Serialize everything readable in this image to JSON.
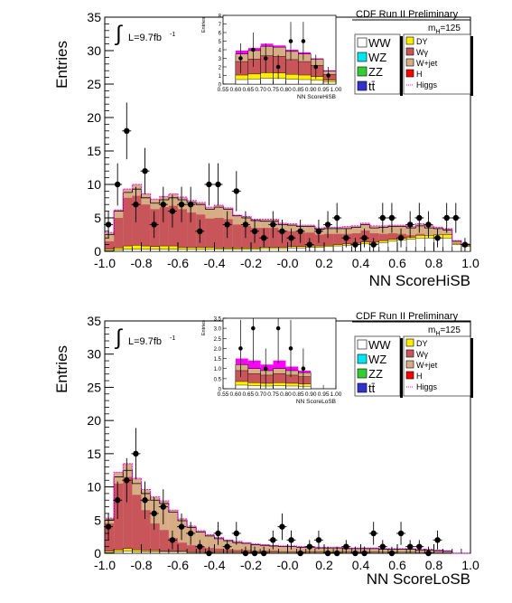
{
  "colors": {
    "WW": "#ffffff",
    "WZ": "#00e5ee",
    "ZZ": "#33cc33",
    "ttbar": "#3333cc",
    "DY": "#ffee00",
    "Wgamma": "#c8555a",
    "Wjet": "#d6ad85",
    "H": "#ff0000",
    "Higgs": "#ff00ff",
    "data": "#000000"
  },
  "legend": {
    "left": [
      {
        "key": "WW",
        "label": "WW"
      },
      {
        "key": "WZ",
        "label": "WZ"
      },
      {
        "key": "ZZ",
        "label": "ZZ"
      },
      {
        "key": "ttbar",
        "label": "tt̄"
      }
    ],
    "right": [
      {
        "key": "DY",
        "label": "DY"
      },
      {
        "key": "Wgamma",
        "label": "Wγ"
      },
      {
        "key": "Wjet",
        "label": "W+jet"
      },
      {
        "key": "H",
        "label": "H"
      },
      {
        "key": "Higgs",
        "label": "Higgs"
      }
    ],
    "mass_label": "m",
    "mass_sub": "H",
    "mass_value": "=125"
  },
  "chart_data": [
    {
      "type": "bar",
      "title": "CDF Run II Preliminary",
      "ylabel": "Entries",
      "xlabel": "NN ScoreHiSB",
      "lumi_text": "L=9.7fb",
      "lumi_sup": "-1",
      "xlim": [
        -1.0,
        1.0
      ],
      "ylim": [
        0,
        35
      ],
      "xticks": [
        "-1.0",
        "-0.8",
        "-0.6",
        "-0.4",
        "-0.2",
        "-0.0",
        "0.2",
        "0.4",
        "0.6",
        "0.8",
        "1.0"
      ],
      "yticks": [
        "0",
        "5",
        "10",
        "15",
        "20",
        "25",
        "30",
        "35"
      ],
      "bin_edges_x": [
        -1.0,
        0.99
      ],
      "bins": 40,
      "stack_total": [
        2.5,
        6,
        8.8,
        9.3,
        8,
        7.2,
        7.7,
        8,
        7.7,
        7.3,
        7,
        6.3,
        6.6,
        6.3,
        5.3,
        5,
        4.6,
        4.5,
        4.5,
        4,
        3.9,
        3.7,
        3.7,
        3.3,
        3.4,
        3.4,
        3.4,
        3.6,
        4,
        3.5,
        3.6,
        3.7,
        3.7,
        3.5,
        3.8,
        3.5,
        3.4,
        3.2,
        1.5,
        1
      ],
      "wjet_top": [
        2.8,
        6.2,
        9.3,
        10,
        8.6,
        7.8,
        8.2,
        8.6,
        8.1,
        7.6,
        7.3,
        6.6,
        6.9,
        6.5,
        5.4,
        5.2,
        4.8,
        4.8,
        4.8,
        4.2,
        4.1,
        3.9,
        3.9,
        3.5,
        3.6,
        3.6,
        3.7,
        3.8,
        4.2,
        3.8,
        3.8,
        3.9,
        3.9,
        3.7,
        4.1,
        3.8,
        3.6,
        3.4,
        1.6,
        1.1
      ],
      "wgamma_top": [
        1.5,
        5,
        8,
        8.3,
        7,
        6.3,
        6.6,
        6.8,
        6.3,
        5.8,
        5.5,
        4.9,
        5,
        4.8,
        4,
        3.8,
        3.5,
        3.5,
        3.5,
        3.1,
        3,
        2.8,
        2.8,
        2.5,
        2.6,
        2.6,
        2.6,
        2.7,
        3.1,
        2.7,
        2.6,
        2.7,
        2.6,
        2.4,
        2.6,
        2.4,
        2.2,
        1.9,
        0.8,
        0.5
      ],
      "dy_top": [
        0.3,
        0.5,
        0.8,
        0.9,
        0.8,
        0.7,
        0.8,
        0.8,
        0.6,
        0.6,
        0.6,
        0.6,
        0.5,
        0.5,
        0.5,
        0.5,
        0.5,
        0.6,
        0.6,
        0.6,
        0.7,
        0.7,
        0.8,
        0.8,
        0.9,
        1.0,
        1.1,
        1.2,
        1.4,
        1.4,
        1.6,
        1.8,
        2.0,
        2.1,
        2.4,
        2.4,
        2.5,
        2.5,
        1.2,
        0.9
      ],
      "ww_top": [
        0.1,
        0.2,
        0.3,
        0.3,
        0.3,
        0.3,
        0.3,
        0.3,
        0.3,
        0.3,
        0.3,
        0.3,
        0.3,
        0.3,
        0.3,
        0.3,
        0.3,
        0.4,
        0.4,
        0.4,
        0.5,
        0.5,
        0.6,
        0.6,
        0.7,
        0.8,
        0.9,
        1.0,
        1.1,
        1.2,
        1.3,
        1.5,
        1.7,
        1.8,
        2.0,
        2.0,
        2.0,
        2.0,
        1.0,
        0.7
      ],
      "data_x": [
        -0.98,
        -0.93,
        -0.88,
        -0.83,
        -0.78,
        -0.73,
        -0.68,
        -0.63,
        -0.58,
        -0.53,
        -0.48,
        -0.43,
        -0.38,
        -0.33,
        -0.28,
        -0.23,
        -0.18,
        -0.13,
        -0.08,
        -0.03,
        0.02,
        0.07,
        0.12,
        0.17,
        0.22,
        0.27,
        0.32,
        0.37,
        0.42,
        0.47,
        0.52,
        0.57,
        0.62,
        0.67,
        0.72,
        0.77,
        0.82,
        0.87,
        0.92,
        0.97
      ],
      "data_y": [
        4,
        10,
        18,
        7,
        12,
        4,
        7,
        6,
        7,
        7,
        3,
        10,
        10,
        4,
        9,
        4,
        3,
        2,
        4,
        3,
        2,
        3,
        1,
        3,
        4,
        5,
        2,
        1,
        2,
        1,
        5,
        5,
        2,
        4,
        5,
        4,
        2,
        5,
        5,
        1
      ],
      "inset": {
        "xlabel": "NN ScoreHiSB",
        "ylabel": "Entries",
        "xlim": [
          0.55,
          1.0
        ],
        "ylim": [
          0,
          8
        ],
        "xticks": [
          "0.55",
          "0.60",
          "0.65",
          "0.70",
          "0.75",
          "0.80",
          "0.85",
          "0.90",
          "0.95",
          "1.00"
        ],
        "yticks": [
          "0",
          "1",
          "2",
          "3",
          "4",
          "5",
          "6",
          "7",
          "8"
        ],
        "stack_total": [
          3.5,
          3.9,
          4.4,
          4.3,
          3.8,
          3.5,
          2.9,
          1.5,
          1.1
        ],
        "higgs_top": [
          3.9,
          4.2,
          4.7,
          4.5,
          4.0,
          3.7,
          3.0,
          1.6,
          1.2
        ],
        "data_x": [
          0.62,
          0.67,
          0.72,
          0.77,
          0.82,
          0.87,
          0.92,
          0.97
        ],
        "data_y": [
          3,
          4,
          3,
          2,
          5,
          5,
          2,
          1
        ]
      }
    },
    {
      "type": "bar",
      "title": "CDF Run II Preliminary",
      "ylabel": "Entries",
      "xlabel": "NN ScoreLoSB",
      "lumi_text": "L=9.7fb",
      "lumi_sup": "-1",
      "xlim": [
        -1.0,
        1.0
      ],
      "ylim": [
        0,
        35
      ],
      "xticks": [
        "-1.0",
        "-0.8",
        "-0.6",
        "-0.4",
        "-0.2",
        "-0.0",
        "0.2",
        "0.4",
        "0.6",
        "0.8",
        "1.0"
      ],
      "yticks": [
        "0",
        "5",
        "10",
        "15",
        "20",
        "25",
        "30",
        "35"
      ],
      "bin_edges_x": [
        -1.0,
        0.99
      ],
      "bins": 40,
      "stack_total": [
        5,
        11.5,
        12.5,
        10.5,
        9,
        8,
        7.5,
        6.2,
        4.9,
        3.9,
        3.2,
        2.6,
        2.2,
        1.9,
        1.6,
        1.5,
        1.3,
        1.2,
        1.1,
        1.0,
        1.0,
        0.9,
        0.9,
        0.8,
        0.8,
        0.8,
        0.7,
        0.7,
        0.7,
        0.7,
        0.6,
        0.6,
        0.6,
        0.6,
        0.5,
        0.5,
        0.4,
        0.3,
        0.0,
        0.0
      ],
      "wjet_top": [
        5.3,
        12.2,
        13.5,
        11.3,
        9.6,
        8.5,
        7.9,
        6.5,
        5.2,
        4.1,
        3.4,
        2.8,
        2.4,
        2.0,
        1.8,
        1.6,
        1.4,
        1.3,
        1.2,
        1.1,
        1.1,
        1.0,
        1.0,
        0.9,
        0.9,
        0.9,
        0.8,
        0.8,
        0.8,
        0.8,
        0.7,
        0.7,
        0.7,
        0.7,
        0.6,
        0.6,
        0.5,
        0.4,
        0.0,
        0.0
      ],
      "wgamma_top": [
        4.5,
        10.5,
        11.5,
        8.8,
        6.5,
        4.5,
        3.5,
        2.3,
        1.6,
        1.2,
        1.0,
        0.8,
        0.7,
        0.6,
        0.5,
        0.5,
        0.4,
        0.4,
        0.4,
        0.3,
        0.3,
        0.3,
        0.3,
        0.3,
        0.3,
        0.3,
        0.3,
        0.3,
        0.3,
        0.3,
        0.2,
        0.2,
        0.2,
        0.2,
        0.2,
        0.2,
        0.2,
        0.1,
        0.0,
        0.0
      ],
      "dy_top": [
        0.3,
        0.5,
        0.7,
        0.5,
        0.4,
        0.4,
        0.3,
        0.3,
        0.3,
        0.2,
        0.2,
        0.2,
        0.2,
        0.2,
        0.2,
        0.2,
        0.2,
        0.2,
        0.2,
        0.2,
        0.2,
        0.2,
        0.2,
        0.2,
        0.2,
        0.2,
        0.2,
        0.2,
        0.2,
        0.2,
        0.2,
        0.2,
        0.2,
        0.2,
        0.1,
        0.1,
        0.1,
        0.1,
        0.0,
        0.0
      ],
      "ww_top": [
        0.1,
        0.2,
        0.3,
        0.2,
        0.2,
        0.2,
        0.2,
        0.2,
        0.2,
        0.1,
        0.1,
        0.1,
        0.1,
        0.1,
        0.1,
        0.1,
        0.1,
        0.1,
        0.1,
        0.1,
        0.1,
        0.1,
        0.1,
        0.1,
        0.1,
        0.1,
        0.1,
        0.1,
        0.1,
        0.1,
        0.1,
        0.1,
        0.1,
        0.1,
        0.1,
        0.1,
        0.1,
        0.1,
        0.0,
        0.0
      ],
      "data_x": [
        -0.98,
        -0.93,
        -0.88,
        -0.83,
        -0.78,
        -0.73,
        -0.68,
        -0.63,
        -0.58,
        -0.53,
        -0.48,
        -0.43,
        -0.38,
        -0.33,
        -0.28,
        -0.23,
        -0.18,
        -0.13,
        -0.08,
        -0.03,
        0.02,
        0.07,
        0.12,
        0.17,
        0.22,
        0.27,
        0.32,
        0.37,
        0.42,
        0.47,
        0.52,
        0.57,
        0.62,
        0.67,
        0.72,
        0.77,
        0.82
      ],
      "data_y": [
        4,
        8,
        11,
        15,
        8,
        6,
        7,
        2,
        4,
        3,
        1,
        0,
        3,
        1,
        3,
        0,
        0,
        0,
        2,
        4,
        2,
        0,
        1,
        2,
        0,
        0,
        1,
        0,
        0,
        3,
        1,
        0,
        3,
        1,
        1,
        0,
        2
      ],
      "inset": {
        "xlabel": "NN ScoreLoSB",
        "ylabel": "Entries",
        "xlim": [
          0.55,
          1.0
        ],
        "ylim": [
          0,
          3.5
        ],
        "xticks": [
          "0.55",
          "0.60",
          "0.65",
          "0.70",
          "0.75",
          "0.80",
          "0.85",
          "0.90",
          "0.95",
          "1.00"
        ],
        "yticks": [
          "0",
          "0.5",
          "1.0",
          "1.5",
          "2.0",
          "2.5",
          "3.0",
          "3.5"
        ],
        "stack_total": [
          1.2,
          1.0,
          0.9,
          1.0,
          0.9,
          0.8,
          0.0,
          0.0,
          0.0
        ],
        "higgs_top": [
          1.5,
          1.4,
          1.2,
          1.4,
          1.1,
          0.9,
          0.0,
          0.0,
          0.0
        ],
        "data_x": [
          0.62,
          0.67,
          0.72,
          0.77,
          0.82,
          0.87
        ],
        "data_y": [
          2,
          3,
          1,
          3,
          2,
          1
        ]
      }
    }
  ]
}
